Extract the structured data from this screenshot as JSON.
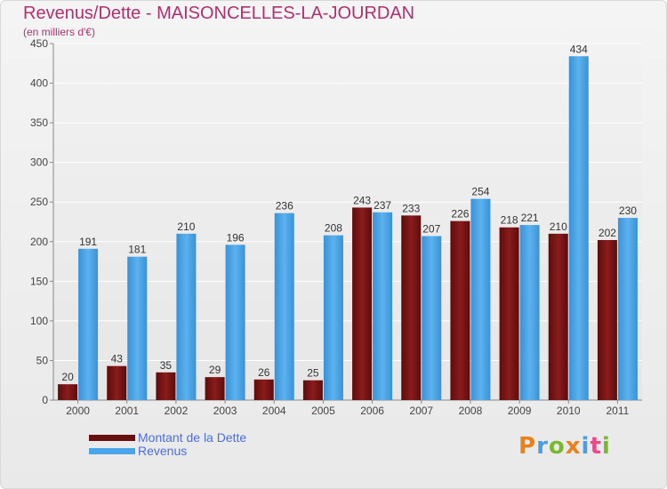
{
  "title": "Revenus/Dette - MAISONCELLES-LA-JOURDAN",
  "subtitle": "(en milliers d'€)",
  "logo_text": "Proxiti",
  "colors": {
    "title": "#b0306e",
    "dette": "#7a1414",
    "revenus": "#4aa6e8",
    "legend_text": "#4a6ee0"
  },
  "chart_data": {
    "type": "bar",
    "categories": [
      "2000",
      "2001",
      "2002",
      "2003",
      "2004",
      "2005",
      "2006",
      "2007",
      "2008",
      "2009",
      "2010",
      "2011"
    ],
    "series": [
      {
        "name": "Montant de la Dette",
        "values": [
          20,
          43,
          35,
          29,
          26,
          25,
          243,
          233,
          226,
          218,
          210,
          202
        ]
      },
      {
        "name": "Revenus",
        "values": [
          191,
          181,
          210,
          196,
          236,
          208,
          237,
          207,
          254,
          221,
          434,
          230
        ]
      }
    ],
    "ylim": [
      0,
      450
    ],
    "yticks": [
      0,
      50,
      100,
      150,
      200,
      250,
      300,
      350,
      400,
      450
    ],
    "grid": true,
    "legend": "bottom-left",
    "data_labels": true
  }
}
